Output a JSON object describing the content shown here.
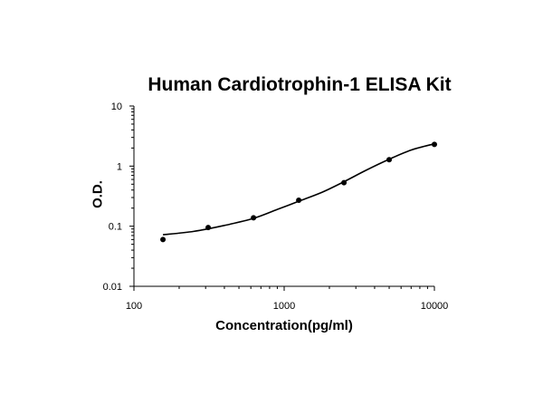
{
  "chart_data": {
    "type": "scatter",
    "title": "Human Cardiotrophin-1 ELISA Kit",
    "xlabel": "Concentration(pg/ml)",
    "ylabel": "O.D.",
    "xscale": "log",
    "yscale": "log",
    "xlim": [
      100,
      10000
    ],
    "ylim": [
      0.01,
      10
    ],
    "xticks": [
      100,
      1000,
      10000
    ],
    "xtick_labels": [
      "100",
      "1000",
      "10000"
    ],
    "yticks": [
      0.01,
      0.1,
      1,
      10
    ],
    "ytick_labels": [
      "0.01",
      "0.1",
      "1",
      "10"
    ],
    "grid": false,
    "series": [
      {
        "points": [
          {
            "x": 156,
            "y": 0.06
          },
          {
            "x": 312,
            "y": 0.095
          },
          {
            "x": 625,
            "y": 0.138
          },
          {
            "x": 1250,
            "y": 0.27
          },
          {
            "x": 2500,
            "y": 0.53
          },
          {
            "x": 5000,
            "y": 1.28
          },
          {
            "x": 10000,
            "y": 2.3
          }
        ],
        "fit_curve": [
          {
            "x": 156,
            "y": 0.072
          },
          {
            "x": 250,
            "y": 0.082
          },
          {
            "x": 400,
            "y": 0.103
          },
          {
            "x": 625,
            "y": 0.135
          },
          {
            "x": 900,
            "y": 0.19
          },
          {
            "x": 1250,
            "y": 0.26
          },
          {
            "x": 1800,
            "y": 0.37
          },
          {
            "x": 2500,
            "y": 0.55
          },
          {
            "x": 3500,
            "y": 0.85
          },
          {
            "x": 5000,
            "y": 1.3
          },
          {
            "x": 7000,
            "y": 1.85
          },
          {
            "x": 10000,
            "y": 2.35
          }
        ],
        "color": "#000000"
      }
    ]
  }
}
